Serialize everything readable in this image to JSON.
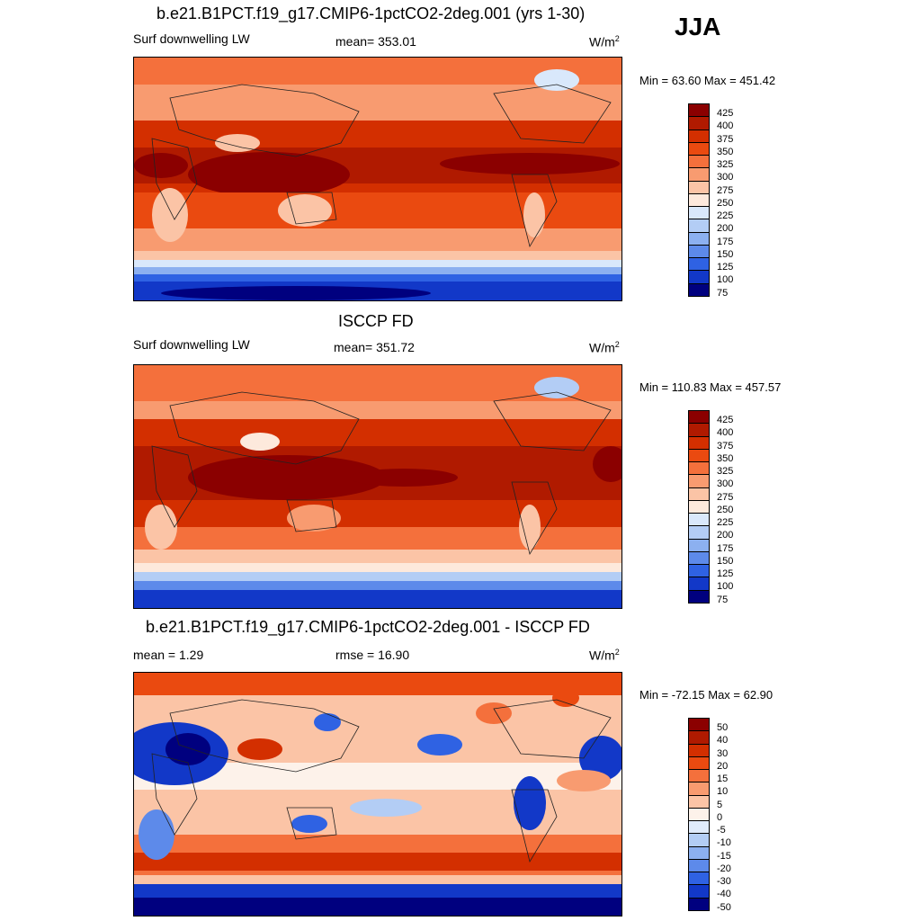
{
  "season": "JJA",
  "panels": [
    {
      "title": "b.e21.B1PCT.f19_g17.CMIP6-1pctCO2-2deg.001 (yrs 1-30)",
      "left_label": "Surf downwelling LW",
      "center_label": "mean= 353.01",
      "units": "W/m",
      "units_sup": "2",
      "minmax": "Min =  63.60 Max = 451.42",
      "colorbar_labels": [
        "425",
        "400",
        "375",
        "350",
        "325",
        "300",
        "275",
        "250",
        "225",
        "200",
        "175",
        "150",
        "125",
        "100",
        "75"
      ],
      "colors": [
        "#8b0000",
        "#b01a00",
        "#d32f00",
        "#ea4a10",
        "#f4703c",
        "#f89b70",
        "#fbc4a6",
        "#fde9dc",
        "#d9e8fb",
        "#b3cdf5",
        "#8cb0f0",
        "#5d8aea",
        "#2f62e3",
        "#1238c8",
        "#00007f"
      ]
    },
    {
      "title": "ISCCP FD",
      "left_label": "Surf downwelling LW",
      "center_label": "mean= 351.72",
      "units": "W/m",
      "units_sup": "2",
      "minmax": "Min = 110.83 Max = 457.57",
      "colorbar_labels": [
        "425",
        "400",
        "375",
        "350",
        "325",
        "300",
        "275",
        "250",
        "225",
        "200",
        "175",
        "150",
        "125",
        "100",
        "75"
      ],
      "colors": [
        "#8b0000",
        "#b01a00",
        "#d32f00",
        "#ea4a10",
        "#f4703c",
        "#f89b70",
        "#fbc4a6",
        "#fde9dc",
        "#d9e8fb",
        "#b3cdf5",
        "#8cb0f0",
        "#5d8aea",
        "#2f62e3",
        "#1238c8",
        "#00007f"
      ]
    },
    {
      "title": "b.e21.B1PCT.f19_g17.CMIP6-1pctCO2-2deg.001 - ISCCP FD",
      "left_label": "mean =   1.29",
      "center_label": "rmse =  16.90",
      "units": "W/m",
      "units_sup": "2",
      "minmax": "Min = -72.15 Max =  62.90",
      "colorbar_labels": [
        "50",
        "40",
        "30",
        "20",
        "15",
        "10",
        "5",
        "0",
        "-5",
        "-10",
        "-15",
        "-20",
        "-30",
        "-40",
        "-50"
      ],
      "colors": [
        "#8b0000",
        "#b01a00",
        "#d32f00",
        "#ea4a10",
        "#f4703c",
        "#f89b70",
        "#fbc4a6",
        "#fdf2ea",
        "#e0ebfb",
        "#b3cdf5",
        "#8cb0f0",
        "#5d8aea",
        "#2f62e3",
        "#1238c8",
        "#00007f"
      ]
    }
  ]
}
